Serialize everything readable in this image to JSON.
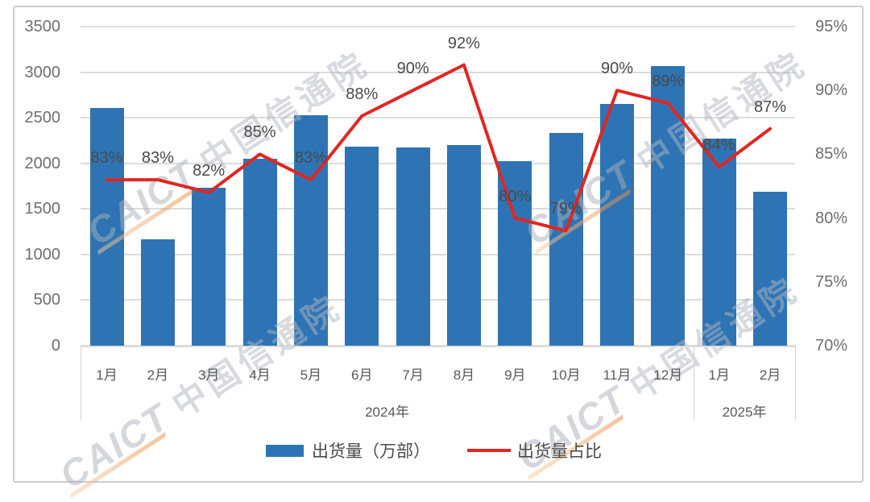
{
  "watermark": {
    "brand": "CAICT",
    "cn": "中国信通院"
  },
  "chart_data": {
    "type": "bar+line combo",
    "categories": [
      "1月",
      "2月",
      "3月",
      "4月",
      "5月",
      "6月",
      "7月",
      "8月",
      "9月",
      "10月",
      "11月",
      "12月",
      "1月",
      "2月"
    ],
    "year_groups": [
      {
        "label": "2024年",
        "months": 12
      },
      {
        "label": "2025年",
        "months": 2
      }
    ],
    "series": [
      {
        "name": "出货量（万部）",
        "type": "bar",
        "color": "#2e74b5",
        "values": [
          2610,
          1170,
          1730,
          2050,
          2530,
          2180,
          2170,
          2200,
          2020,
          2330,
          2650,
          3070,
          2270,
          1690
        ]
      },
      {
        "name": "出货量占比",
        "type": "line",
        "color": "#e02622",
        "values": [
          83,
          83,
          82,
          85,
          83,
          88,
          90,
          92,
          80,
          79,
          90,
          89,
          84,
          87
        ],
        "labels": [
          "83%",
          "83%",
          "82%",
          "85%",
          "83%",
          "88%",
          "90%",
          "92%",
          "80%",
          "79%",
          "90%",
          "89%",
          "84%",
          "87%"
        ]
      }
    ],
    "left_axis": {
      "min": 0,
      "max": 3500,
      "step": 500,
      "ticks": [
        "3500",
        "3000",
        "2500",
        "2000",
        "1500",
        "1000",
        "500",
        "0"
      ]
    },
    "right_axis": {
      "min": 70,
      "max": 95,
      "step": 5,
      "ticks": [
        "95%",
        "90%",
        "85%",
        "80%",
        "75%",
        "70%"
      ]
    },
    "grid": "horizontal",
    "legend_position": "bottom"
  }
}
